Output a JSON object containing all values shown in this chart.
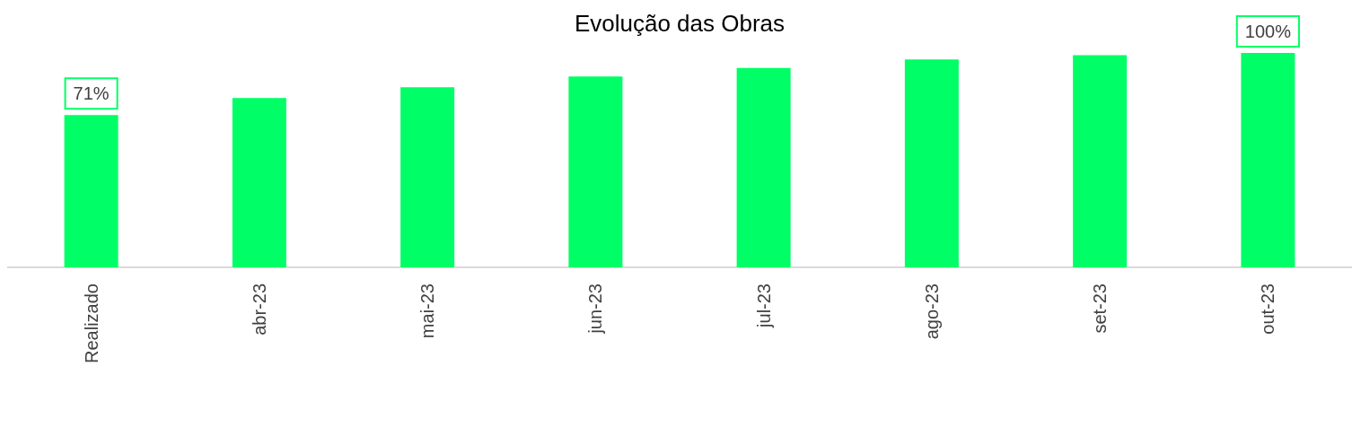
{
  "chart_data": {
    "type": "bar",
    "title": "Evolução das Obras",
    "categories": [
      "Realizado",
      "abr-23",
      "mai-23",
      "jun-23",
      "jul-23",
      "ago-23",
      "set-23",
      "out-23"
    ],
    "series": [
      {
        "color": "#00ff66",
        "values": [
          71,
          79,
          84,
          89,
          93,
          97,
          99,
          100
        ],
        "value_labels": [
          "71%",
          null,
          null,
          null,
          null,
          null,
          null,
          "100%"
        ]
      }
    ]
  }
}
